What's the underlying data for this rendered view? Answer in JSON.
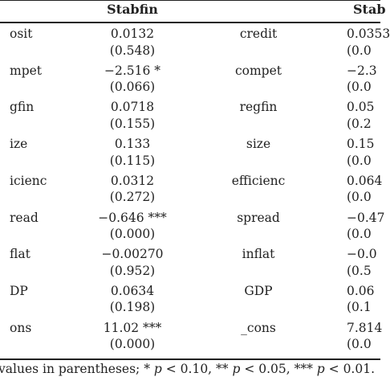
{
  "table": {
    "headers": [
      "Stabfin",
      "Stab"
    ],
    "rows": [
      {
        "left_var": "osit",
        "left_coef": "0.0132",
        "left_p": "(0.548)",
        "right_var": "credit",
        "right_coef": "0.0353",
        "right_p": "(0.0"
      },
      {
        "left_var": "mpet",
        "left_coef": "−2.516 *",
        "left_p": "(0.066)",
        "right_var": "compet",
        "right_coef": "−2.3",
        "right_p": "(0.0"
      },
      {
        "left_var": "gfin",
        "left_coef": "0.0718",
        "left_p": "(0.155)",
        "right_var": "regfin",
        "right_coef": "0.05",
        "right_p": "(0.2"
      },
      {
        "left_var": "ize",
        "left_coef": "0.133",
        "left_p": "(0.115)",
        "right_var": "size",
        "right_coef": "0.15",
        "right_p": "(0.0"
      },
      {
        "left_var": "icienc",
        "left_coef": "0.0312",
        "left_p": "(0.272)",
        "right_var": "efficienc",
        "right_coef": "0.064",
        "right_p": "(0.0"
      },
      {
        "left_var": "read",
        "left_coef": "−0.646 ***",
        "left_p": "(0.000)",
        "right_var": "spread",
        "right_coef": "−0.47",
        "right_p": "(0.0"
      },
      {
        "left_var": "flat",
        "left_coef": "−0.00270",
        "left_p": "(0.952)",
        "right_var": "inflat",
        "right_coef": "−0.0",
        "right_p": "(0.5"
      },
      {
        "left_var": "DP",
        "left_coef": "0.0634",
        "left_p": "(0.198)",
        "right_var": "GDP",
        "right_coef": "0.06",
        "right_p": "(0.1"
      },
      {
        "left_var": "ons",
        "left_coef": "11.02 ***",
        "left_p": "(0.000)",
        "right_var": "_cons",
        "right_coef": "7.814",
        "right_p": "(0.0"
      }
    ],
    "footnote": "values in parentheses; * p < 0.10, ** p < 0.05, *** p < 0.01."
  }
}
